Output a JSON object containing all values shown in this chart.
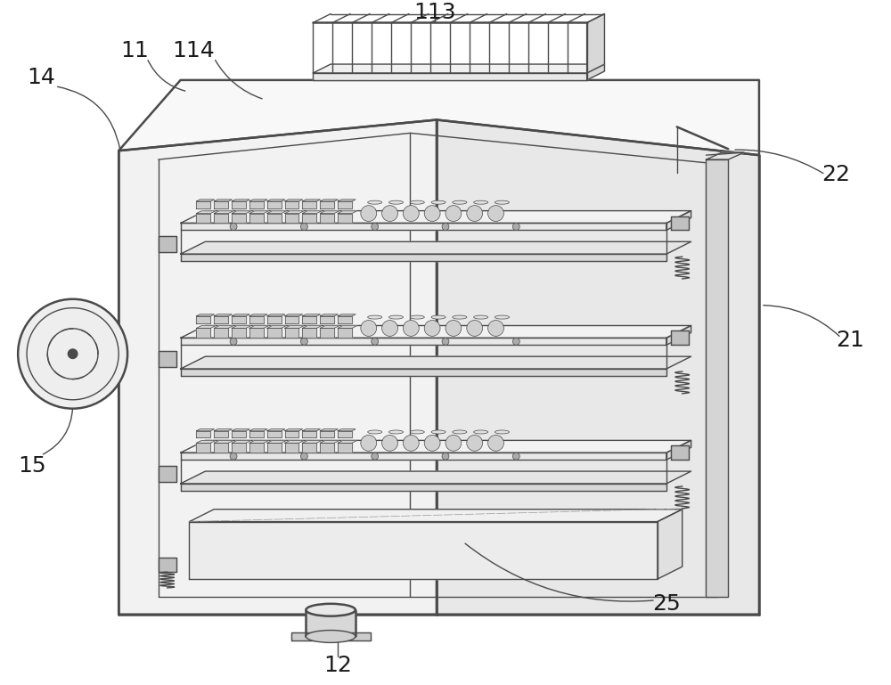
{
  "bg_color": "#ffffff",
  "line_color": "#4a4a4a",
  "lw": 1.0,
  "lw_thick": 1.8,
  "lw_thin": 0.5,
  "fig_width": 10.0,
  "fig_height": 7.69,
  "labels": [
    "14",
    "11",
    "114",
    "113",
    "22",
    "21",
    "15",
    "25",
    "12"
  ]
}
